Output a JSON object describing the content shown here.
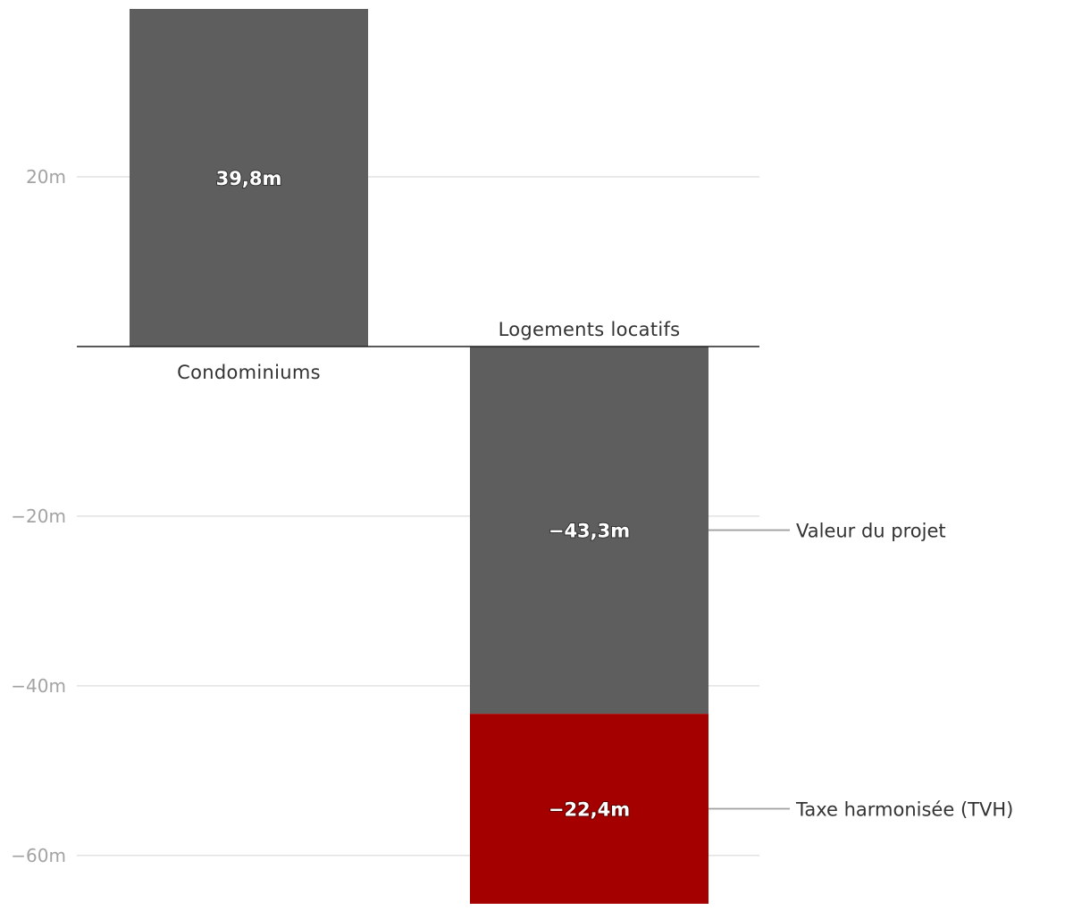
{
  "chart_data": {
    "type": "bar",
    "stacked": true,
    "title": "",
    "xlabel": "",
    "ylabel": "",
    "ylim": [
      -65.5,
      39.8
    ],
    "yticks": [
      {
        "value": 20,
        "label": "20m"
      },
      {
        "value": -20,
        "label": "−20m"
      },
      {
        "value": -40,
        "label": "−40m"
      },
      {
        "value": -60,
        "label": "−60m"
      }
    ],
    "categories": [
      "Condominiums",
      "Logements locatifs"
    ],
    "series": [
      {
        "name": "Valeur du projet",
        "color": "#5e5e5e",
        "values": [
          39.8,
          -43.3
        ],
        "labels": [
          "39,8m",
          "−43,3m"
        ]
      },
      {
        "name": "Taxe harmonisée (TVH)",
        "color": "#a50000",
        "values": [
          0,
          -22.4
        ],
        "labels": [
          "",
          "−22,4m"
        ]
      }
    ],
    "legend": {
      "placement": "right",
      "attached_to": "Logements locatifs"
    },
    "grid": true
  }
}
